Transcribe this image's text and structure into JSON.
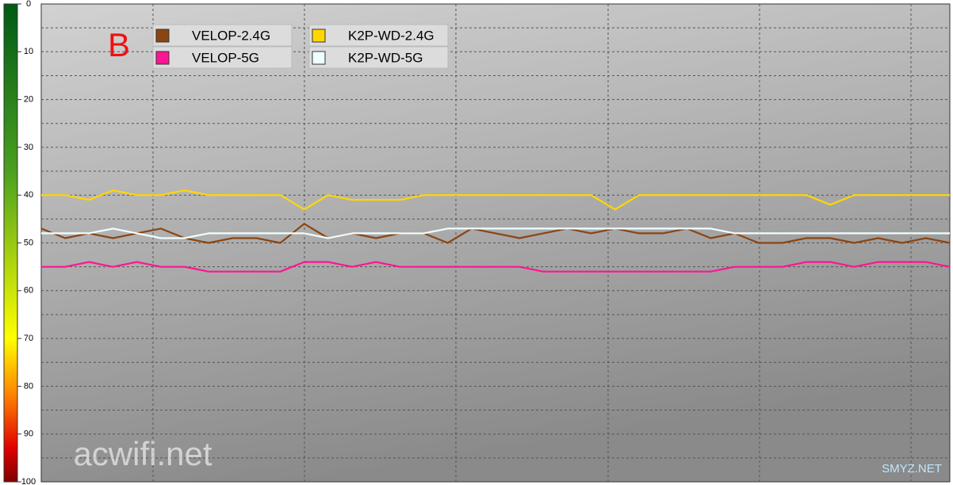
{
  "chart_data": {
    "type": "line",
    "annotations": [
      "B",
      "acwifi.net",
      "SMYZ.NET"
    ],
    "categories": [
      null,
      null,
      null,
      null,
      null,
      null,
      null,
      null,
      null,
      null,
      null,
      null,
      null,
      null,
      null,
      null,
      null,
      null,
      null,
      null,
      null,
      null,
      null,
      null,
      null,
      null,
      null,
      null,
      null,
      null,
      null,
      null,
      null,
      null,
      null,
      null,
      null,
      null,
      null
    ],
    "series": [
      {
        "name": "VELOP-2.4G",
        "color": "#8b4513",
        "values": [
          47,
          49,
          48,
          49,
          48,
          47,
          49,
          50,
          49,
          49,
          50,
          46,
          49,
          48,
          49,
          48,
          48,
          50,
          47,
          48,
          49,
          48,
          47,
          48,
          47,
          48,
          48,
          47,
          49,
          48,
          50,
          50,
          49,
          49,
          50,
          49,
          50,
          49,
          50
        ]
      },
      {
        "name": "VELOP-5G",
        "color": "#ff1493",
        "values": [
          55,
          55,
          54,
          55,
          54,
          55,
          55,
          56,
          56,
          56,
          56,
          54,
          54,
          55,
          54,
          55,
          55,
          55,
          55,
          55,
          55,
          56,
          56,
          56,
          56,
          56,
          56,
          56,
          56,
          55,
          55,
          55,
          54,
          54,
          55,
          54,
          54,
          54,
          55
        ]
      },
      {
        "name": "K2P-WD-2.4G",
        "color": "#ffd700",
        "values": [
          40,
          40,
          41,
          39,
          40,
          40,
          39,
          40,
          40,
          40,
          40,
          43,
          40,
          41,
          41,
          41,
          40,
          40,
          40,
          40,
          40,
          40,
          40,
          40,
          43,
          40,
          40,
          40,
          40,
          40,
          40,
          40,
          40,
          42,
          40,
          40,
          40,
          40,
          40
        ]
      },
      {
        "name": "K2P-WD-5G",
        "color": "#f0ffff",
        "values": [
          48,
          48,
          48,
          47,
          48,
          49,
          49,
          48,
          48,
          48,
          48,
          48,
          49,
          48,
          48,
          48,
          48,
          47,
          47,
          47,
          47,
          47,
          47,
          47,
          47,
          47,
          47,
          47,
          47,
          48,
          48,
          48,
          48,
          48,
          48,
          48,
          48,
          48,
          48
        ]
      }
    ],
    "ylim": [
      0,
      100
    ],
    "y_inverted": true,
    "yticks": [
      0,
      10,
      20,
      30,
      40,
      50,
      60,
      70,
      80,
      90,
      100
    ],
    "ygrid": [
      5,
      10,
      15,
      20,
      25,
      30,
      35,
      40,
      45,
      50,
      55,
      60,
      65,
      70,
      75,
      80,
      85,
      90,
      95
    ],
    "grid": true
  }
}
